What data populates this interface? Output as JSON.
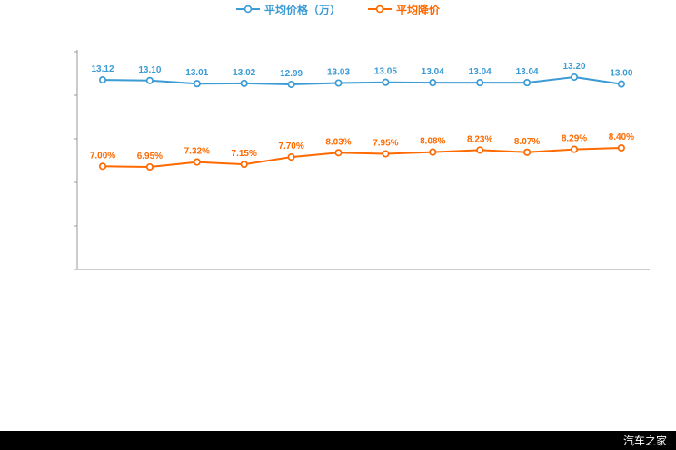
{
  "page": {
    "background": "#ffffff"
  },
  "footer": {
    "brand": "汽车之家",
    "background": "#000000",
    "text_color": "#ffffff"
  },
  "legend": {
    "items": [
      {
        "label": "平均价格（万）",
        "color": "#3b9bd5"
      },
      {
        "label": "平均降价",
        "color": "#ff6a00"
      }
    ]
  },
  "chart_data": {
    "type": "line",
    "categories": [
      "",
      "",
      "",
      "",
      "",
      "",
      "",
      "",
      "",
      "",
      "",
      ""
    ],
    "x_axis_labels_visible": false,
    "grid": false,
    "legend_position": "bottom",
    "axis_color": "#999999",
    "series": [
      {
        "name": "平均价格（万）",
        "color": "#3b9bd5",
        "unit": "万",
        "values": [
          13.12,
          13.1,
          13.01,
          13.02,
          12.99,
          13.03,
          13.05,
          13.04,
          13.04,
          13.04,
          13.2,
          13.0
        ],
        "labels": [
          "13.12",
          "13.10",
          "13.01",
          "13.02",
          "12.99",
          "13.03",
          "13.05",
          "13.04",
          "13.04",
          "13.04",
          "13.20",
          "13.00"
        ]
      },
      {
        "name": "平均降价",
        "color": "#ff6a00",
        "unit": "%",
        "values": [
          7.0,
          6.95,
          7.32,
          7.15,
          7.7,
          8.03,
          7.95,
          8.08,
          8.23,
          8.07,
          8.29,
          8.4
        ],
        "labels": [
          "7.00%",
          "6.95%",
          "7.32%",
          "7.15%",
          "7.70%",
          "8.03%",
          "7.95%",
          "8.08%",
          "8.23%",
          "8.07%",
          "8.29%",
          "8.40%"
        ]
      }
    ]
  }
}
